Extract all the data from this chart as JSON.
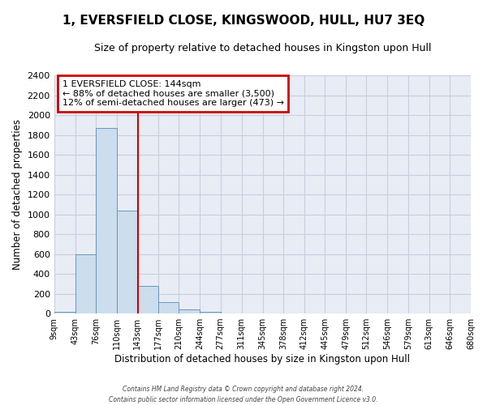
{
  "title": "1, EVERSFIELD CLOSE, KINGSWOOD, HULL, HU7 3EQ",
  "subtitle": "Size of property relative to detached houses in Kingston upon Hull",
  "xlabel": "Distribution of detached houses by size in Kingston upon Hull",
  "ylabel": "Number of detached properties",
  "bin_edges": [
    9,
    43,
    76,
    110,
    143,
    177,
    210,
    244,
    277,
    311,
    345,
    378,
    412,
    445,
    479,
    512,
    546,
    579,
    613,
    646,
    680
  ],
  "bin_labels": [
    "9sqm",
    "43sqm",
    "76sqm",
    "110sqm",
    "143sqm",
    "177sqm",
    "210sqm",
    "244sqm",
    "277sqm",
    "311sqm",
    "345sqm",
    "378sqm",
    "412sqm",
    "445sqm",
    "479sqm",
    "512sqm",
    "546sqm",
    "579sqm",
    "613sqm",
    "646sqm",
    "680sqm"
  ],
  "bar_heights": [
    20,
    600,
    1870,
    1040,
    280,
    115,
    45,
    20,
    0,
    0,
    0,
    0,
    0,
    0,
    0,
    0,
    0,
    0,
    0,
    0
  ],
  "bar_color": "#ccdded",
  "bar_edge_color": "#6699bb",
  "property_line_x": 144,
  "property_line_color": "#cc0000",
  "ylim": [
    0,
    2400
  ],
  "yticks": [
    0,
    200,
    400,
    600,
    800,
    1000,
    1200,
    1400,
    1600,
    1800,
    2000,
    2200,
    2400
  ],
  "grid_color": "#ccccdd",
  "annotation_title": "1 EVERSFIELD CLOSE: 144sqm",
  "annotation_line1": "← 88% of detached houses are smaller (3,500)",
  "annotation_line2": "12% of semi-detached houses are larger (473) →",
  "annotation_box_facecolor": "#ffffff",
  "annotation_box_edgecolor": "#cc0000",
  "footer_line1": "Contains HM Land Registry data © Crown copyright and database right 2024.",
  "footer_line2": "Contains public sector information licensed under the Open Government Licence v3.0.",
  "fig_facecolor": "#ffffff",
  "axes_facecolor": "#e8ecf5",
  "title_fontsize": 11,
  "subtitle_fontsize": 9
}
